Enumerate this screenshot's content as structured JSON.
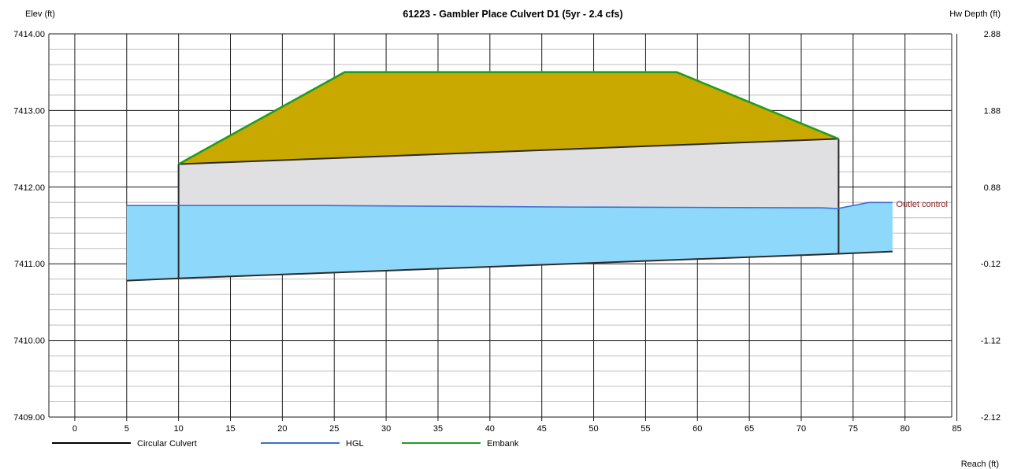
{
  "chart_data": {
    "type": "line",
    "title": "61223 - Gambler Place Culvert D1 (5yr - 2.4 cfs)",
    "ylabel_left": "Elev (ft)",
    "ylabel_right": "Hw Depth (ft)",
    "xlabel": "Reach (ft)",
    "xlim": [
      -2.5,
      84.5
    ],
    "ylim": [
      7409.0,
      7414.0
    ],
    "x_ticks": [
      0,
      5,
      10,
      15,
      20,
      25,
      30,
      35,
      40,
      45,
      50,
      55,
      60,
      65,
      70,
      75,
      80,
      85
    ],
    "x_tick_labels": [
      "0",
      "5",
      "10",
      "15",
      "20",
      "25",
      "30",
      "35",
      "40",
      "45",
      "50",
      "55",
      "60",
      "65",
      "70",
      "75",
      "80",
      "85"
    ],
    "y_ticks_left": [
      7409.0,
      7410.0,
      7411.0,
      7412.0,
      7413.0,
      7414.0
    ],
    "y_tick_labels_left": [
      "7409.00",
      "7410.00",
      "7411.00",
      "7412.00",
      "7413.00",
      "7414.00"
    ],
    "y_tick_labels_right": [
      "-2.12",
      "-1.12",
      "-0.12",
      "0.88",
      "1.88",
      "2.88"
    ],
    "grid": true,
    "minor_gridlines_per_major": 5,
    "legend_position": "bottom",
    "legend": [
      {
        "name": "Circular Culvert",
        "color": "#000000"
      },
      {
        "name": "HGL",
        "color": "#3a6fd8"
      },
      {
        "name": "Embank",
        "color": "#1e9e1e"
      }
    ],
    "series": [
      {
        "name": "Embank",
        "color": "#1e9e1e",
        "fill": "#c9a800",
        "x": [
          10,
          26,
          58,
          73.6
        ],
        "y": [
          7412.3,
          7413.5,
          7413.5,
          7412.63
        ]
      },
      {
        "name": "Circular Culvert",
        "color": "#2b2b2b",
        "fill": "#e0e0e3",
        "x": [
          10,
          73.6
        ],
        "crown_y": [
          7412.3,
          7412.63
        ],
        "invert_y": [
          7410.81,
          7411.13
        ]
      },
      {
        "name": "HGL",
        "color": "#3a6fd8",
        "x": [
          5,
          10,
          24,
          48,
          72,
          73.5,
          76.5,
          78.8
        ],
        "y": [
          7411.76,
          7411.76,
          7411.76,
          7411.74,
          7411.73,
          7411.72,
          7411.8,
          7411.8
        ]
      }
    ],
    "water_area": {
      "color": "#8ed8fc",
      "top_x": [
        5,
        10,
        24,
        48,
        72,
        73.5,
        76.5,
        78.8
      ],
      "top_y": [
        7411.76,
        7411.76,
        7411.76,
        7411.74,
        7411.73,
        7411.72,
        7411.8,
        7411.8
      ],
      "bottom_x": [
        5,
        10,
        73.6,
        78.8
      ],
      "bottom_y": [
        7410.78,
        7410.81,
        7411.13,
        7411.16
      ]
    },
    "annotations": [
      {
        "text": "Outlet control",
        "x": 79,
        "y": 7411.78,
        "color": "#8b1a1a"
      }
    ]
  }
}
